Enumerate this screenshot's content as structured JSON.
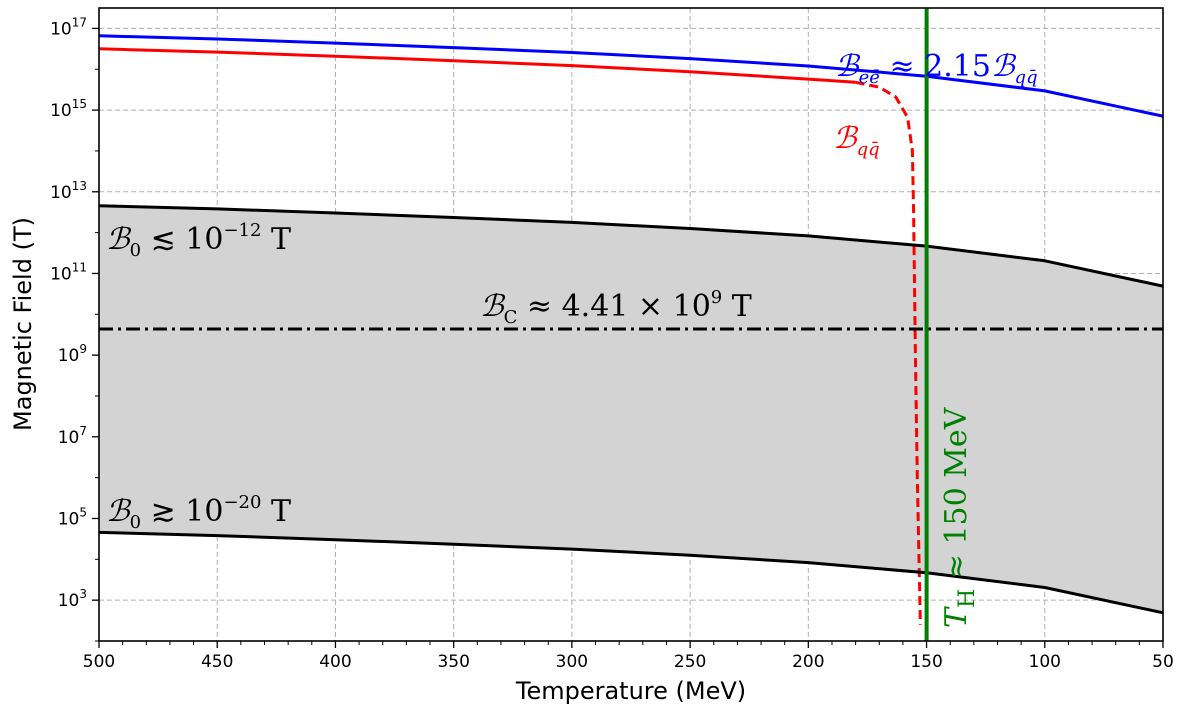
{
  "chart_data": {
    "type": "line",
    "xlabel": "Temperature (MeV)",
    "ylabel": "Magnetic Field (T)",
    "x_axis": {
      "reversed": true,
      "range": [
        500,
        50
      ],
      "ticks": [
        500,
        450,
        400,
        350,
        300,
        250,
        200,
        150,
        100,
        50
      ]
    },
    "y_axis": {
      "scale": "log",
      "range_log10": [
        2,
        17.5
      ],
      "ticks_exp": [
        3,
        5,
        7,
        9,
        11,
        13,
        15,
        17
      ]
    },
    "grid": true,
    "series": [
      {
        "name": "B_ee",
        "color": "#0000ff",
        "style": "solid",
        "x": [
          500,
          450,
          400,
          350,
          300,
          250,
          200,
          150,
          100,
          50
        ],
        "log10y": [
          16.82,
          16.74,
          16.64,
          16.53,
          16.41,
          16.26,
          16.08,
          15.83,
          15.47,
          14.85
        ]
      },
      {
        "name": "B_qq",
        "color": "#ff0000",
        "style": "solid",
        "x": [
          500,
          450,
          400,
          350,
          300,
          250,
          200,
          180
        ],
        "log10y": [
          16.5,
          16.42,
          16.32,
          16.21,
          16.09,
          15.94,
          15.76,
          15.68
        ]
      },
      {
        "name": "B_qq_transition",
        "color": "#ff0000",
        "style": "dashed",
        "x": [
          180,
          170,
          163,
          158,
          156,
          155.5,
          154.7,
          153.9,
          153.2,
          152.6
        ],
        "log10y": [
          15.68,
          15.56,
          15.32,
          14.82,
          14,
          12.5,
          9,
          6,
          4,
          2.4
        ]
      },
      {
        "name": "B0_upper",
        "color": "#000000",
        "style": "solid",
        "x": [
          500,
          450,
          400,
          350,
          300,
          250,
          200,
          150,
          100,
          50
        ],
        "log10y": [
          12.66,
          12.58,
          12.48,
          12.37,
          12.25,
          12.1,
          11.92,
          11.67,
          11.31,
          10.69
        ]
      },
      {
        "name": "B0_lower",
        "color": "#000000",
        "style": "solid",
        "x": [
          500,
          450,
          400,
          350,
          300,
          250,
          200,
          150,
          100,
          50
        ],
        "log10y": [
          4.66,
          4.58,
          4.48,
          4.37,
          4.25,
          4.1,
          3.92,
          3.67,
          3.31,
          2.69
        ]
      },
      {
        "name": "B_C",
        "color": "#000000",
        "style": "dashdot",
        "x": [
          500,
          50
        ],
        "log10y": [
          9.64,
          9.64
        ]
      },
      {
        "name": "T_H",
        "color": "#008000",
        "style": "solid",
        "x": [
          150,
          150
        ],
        "log10y": [
          2,
          17.5
        ]
      }
    ],
    "shaded_band": {
      "between": [
        "B0_upper",
        "B0_lower"
      ],
      "color": "#d3d3d3"
    },
    "annotations": {
      "bee": "≈ 2.15",
      "bqq": "",
      "b0_upper": "≲ 10",
      "b0_upper_exp": "−12",
      "b0_lower": "≳ 10",
      "b0_lower_exp": "−20",
      "bc": "≈ 4.41 × 10",
      "bc_exp": "9",
      "th": "≈ 150 MeV",
      "unit_T": "T"
    }
  }
}
